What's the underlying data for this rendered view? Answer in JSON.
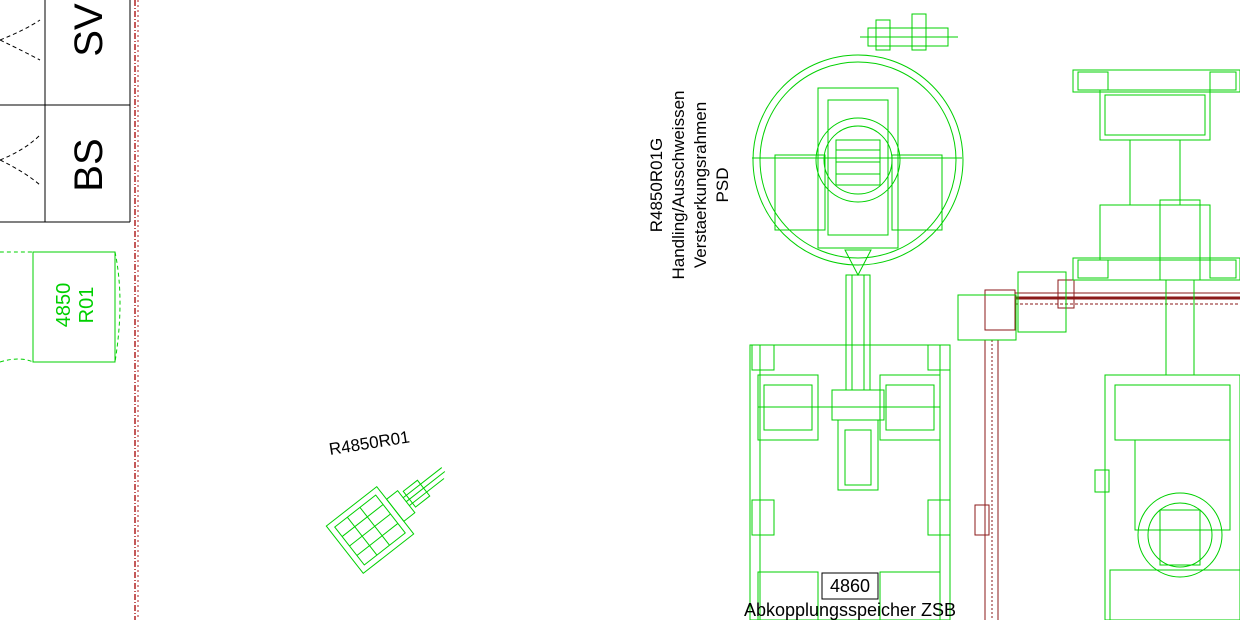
{
  "colors": {
    "background": "#ffffff",
    "equipment": "#00d000",
    "conveyor": "#8b1a1a",
    "boundary": "#b22222",
    "text": "#000000",
    "frame": "#000000"
  },
  "left_panel": {
    "cell_sv": "SV",
    "cell_bs": "BS",
    "station_label_line1": "4850",
    "station_label_line2": "R01"
  },
  "labels": {
    "robot_small": "R4850R01",
    "rotary_line1": "R4850R01G",
    "rotary_line2": "Handling/Ausschweissen",
    "rotary_line3": "Verstaerkungsrahmen",
    "rotary_line4": "PSD",
    "buffer_number": "4860",
    "buffer_name": "Abkopplungsspeicher ZSB"
  }
}
